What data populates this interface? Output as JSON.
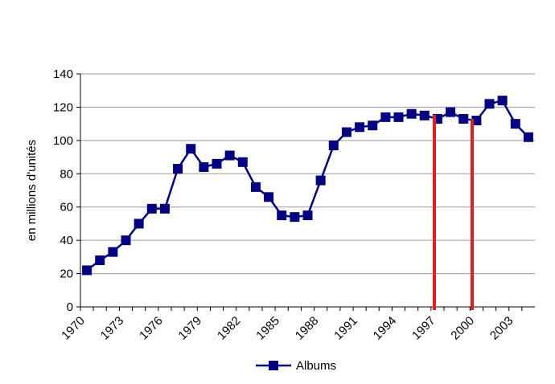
{
  "chart_data": {
    "type": "line",
    "y_label": "en millions d'unités",
    "categories": [
      "1970",
      null,
      null,
      "1973",
      null,
      null,
      "1976",
      null,
      null,
      "1979",
      null,
      null,
      "1982",
      null,
      null,
      "1985",
      null,
      null,
      "1988",
      null,
      null,
      "1991",
      null,
      null,
      "1994",
      null,
      null,
      "1997",
      null,
      null,
      "2000",
      null,
      null,
      "2003",
      null
    ],
    "series": [
      {
        "name": "Albums",
        "color": "#000080",
        "values": [
          22,
          28,
          33,
          40,
          50,
          59,
          59,
          83,
          95,
          84,
          86,
          91,
          87,
          72,
          66,
          55,
          54,
          55,
          76,
          97,
          105,
          108,
          109,
          114,
          114,
          116,
          115,
          113,
          117,
          113,
          112,
          122,
          124,
          110,
          102
        ]
      }
    ],
    "ylim": [
      0,
      140
    ],
    "yticks": [
      0,
      20,
      40,
      60,
      80,
      100,
      120,
      140
    ],
    "grid": true,
    "legend": "bottom"
  }
}
